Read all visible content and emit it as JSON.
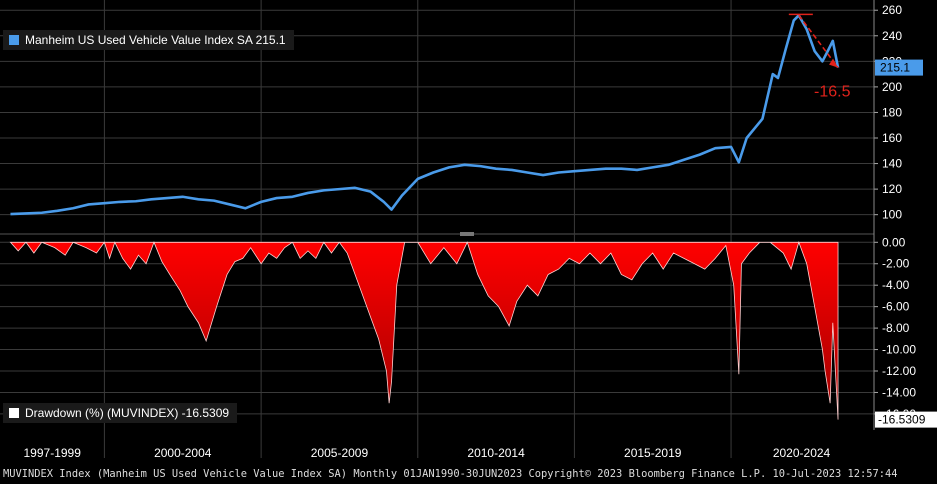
{
  "chart_data": [
    {
      "type": "line",
      "series": [
        {
          "name": "Manheim US Used Vehicle Value Index SA",
          "last_value": "215.1"
        }
      ],
      "legend_text": "Manheim US Used Vehicle Value Index SA 215.1",
      "legend_placement": "top-left",
      "y_ticks": [
        "100",
        "120",
        "140",
        "160",
        "180",
        "200",
        "220",
        "240",
        "260"
      ],
      "ylim": [
        88,
        268
      ],
      "last_value_tag": "215.1",
      "annotation": "-16.5",
      "color": "#4a9bea",
      "grid": true,
      "x": [
        "1997-01",
        "1997-07",
        "1998-01",
        "1998-07",
        "1999-01",
        "1999-07",
        "2000-01",
        "2000-07",
        "2001-01",
        "2001-07",
        "2002-01",
        "2002-07",
        "2003-01",
        "2003-07",
        "2004-01",
        "2004-07",
        "2005-01",
        "2005-07",
        "2006-01",
        "2006-07",
        "2007-01",
        "2007-07",
        "2008-01",
        "2008-07",
        "2008-12",
        "2009-03",
        "2009-07",
        "2010-01",
        "2010-07",
        "2011-01",
        "2011-07",
        "2012-01",
        "2012-07",
        "2013-01",
        "2013-07",
        "2014-01",
        "2014-07",
        "2015-01",
        "2015-07",
        "2016-01",
        "2016-07",
        "2017-01",
        "2017-07",
        "2018-01",
        "2018-07",
        "2019-01",
        "2019-07",
        "2020-01",
        "2020-04",
        "2020-07",
        "2021-01",
        "2021-05",
        "2021-07",
        "2021-10",
        "2022-01",
        "2022-03",
        "2022-06",
        "2022-09",
        "2022-12",
        "2023-02",
        "2023-04",
        "2023-06"
      ],
      "values": [
        100.5,
        101,
        101.5,
        103,
        105,
        108,
        109,
        110,
        110.5,
        112,
        113,
        114,
        112,
        111,
        108,
        105,
        110,
        113,
        114,
        117,
        119,
        120,
        121,
        118,
        110,
        104,
        115,
        128,
        133,
        137,
        139,
        138,
        136,
        135,
        133,
        131,
        133,
        134,
        135,
        136,
        136,
        135,
        137,
        139,
        143,
        147,
        152,
        153,
        141,
        160,
        175,
        210,
        207,
        230,
        252,
        256,
        245,
        228,
        220,
        228,
        236,
        215.1
      ]
    },
    {
      "type": "area",
      "series": [
        {
          "name": "Drawdown (%) (MUVINDEX)",
          "last_value": "-16.5309"
        }
      ],
      "legend_text": "Drawdown (%) (MUVINDEX) -16.5309",
      "legend_placement": "bottom-left",
      "y_ticks": [
        "0.00",
        "-2.00",
        "-4.00",
        "-6.00",
        "-8.00",
        "-10.00",
        "-12.00",
        "-14.00",
        "-16.00"
      ],
      "ylim": [
        -17.5,
        0.4
      ],
      "last_value_tag": "-16.5309",
      "color": "#e60000",
      "grid": true,
      "x": [
        "1997-01",
        "1997-04",
        "1997-07",
        "1997-10",
        "1998-01",
        "1998-06",
        "1998-10",
        "1999-01",
        "1999-06",
        "1999-10",
        "2000-01",
        "2000-03",
        "2000-05",
        "2000-08",
        "2000-11",
        "2001-02",
        "2001-05",
        "2001-08",
        "2001-11",
        "2002-02",
        "2002-06",
        "2002-09",
        "2003-01",
        "2003-04",
        "2003-08",
        "2003-12",
        "2004-03",
        "2004-06",
        "2004-09",
        "2005-01",
        "2005-04",
        "2005-07",
        "2005-10",
        "2006-01",
        "2006-04",
        "2006-07",
        "2006-10",
        "2007-01",
        "2007-04",
        "2007-07",
        "2007-10",
        "2008-01",
        "2008-04",
        "2008-07",
        "2008-10",
        "2009-01",
        "2009-02",
        "2009-03",
        "2009-05",
        "2009-08",
        "2010-01",
        "2010-06",
        "2010-11",
        "2011-04",
        "2011-08",
        "2011-12",
        "2012-04",
        "2012-08",
        "2012-12",
        "2013-03",
        "2013-07",
        "2013-11",
        "2014-03",
        "2014-07",
        "2014-11",
        "2015-03",
        "2015-07",
        "2015-11",
        "2016-03",
        "2016-07",
        "2016-11",
        "2017-03",
        "2017-07",
        "2017-11",
        "2018-03",
        "2018-07",
        "2018-11",
        "2019-03",
        "2019-07",
        "2019-11",
        "2020-02",
        "2020-04",
        "2020-05",
        "2020-08",
        "2020-12",
        "2021-04",
        "2021-09",
        "2021-12",
        "2022-03",
        "2022-06",
        "2022-09",
        "2022-12",
        "2023-01",
        "2023-03",
        "2023-04",
        "2023-06"
      ],
      "values": [
        0,
        -0.8,
        0,
        -1,
        0,
        -0.5,
        -1.2,
        0,
        -0.5,
        -1,
        0,
        -1.5,
        0,
        -1.5,
        -2.5,
        -1.2,
        -2,
        0,
        -1.8,
        -3,
        -4.5,
        -6,
        -7.5,
        -9.2,
        -6,
        -3,
        -1.8,
        -1.5,
        -0.5,
        -2,
        -1,
        -1.5,
        -0.5,
        0,
        -1.5,
        -0.8,
        -1.5,
        0,
        -1,
        0,
        -1,
        -3,
        -5,
        -7,
        -9,
        -12,
        -15,
        -13,
        -4,
        0,
        0,
        -2,
        -0.5,
        -2,
        0,
        -3,
        -5,
        -6,
        -7.8,
        -5.5,
        -4,
        -5,
        -3,
        -2.5,
        -1.5,
        -2,
        -1,
        -2,
        -1,
        -3,
        -3.5,
        -2,
        -1,
        -2.5,
        -1,
        -1.5,
        -2,
        -2.5,
        -1.5,
        -0.3,
        -4,
        -12.3,
        -2,
        -1,
        0,
        0,
        -1,
        -2.5,
        0,
        -2,
        -6,
        -10,
        -12,
        -15,
        -7.5,
        -16.5309
      ]
    }
  ],
  "x_axis": {
    "labels": [
      "1997-1999",
      "2000-2004",
      "2005-2009",
      "2010-2014",
      "2015-2019",
      "2020-2024"
    ]
  },
  "footer": "MUVINDEX Index (Manheim US Used Vehicle Value Index SA)  Monthly 01JAN1990-30JUN2023 Copyright© 2023 Bloomberg Finance L.P. 10-Jul-2023 12:57:44",
  "colors": {
    "background": "#000000",
    "grid": "#3a3a3a",
    "line": "#4a9bea",
    "area": "#e60000",
    "annotation": "#e0221b"
  }
}
